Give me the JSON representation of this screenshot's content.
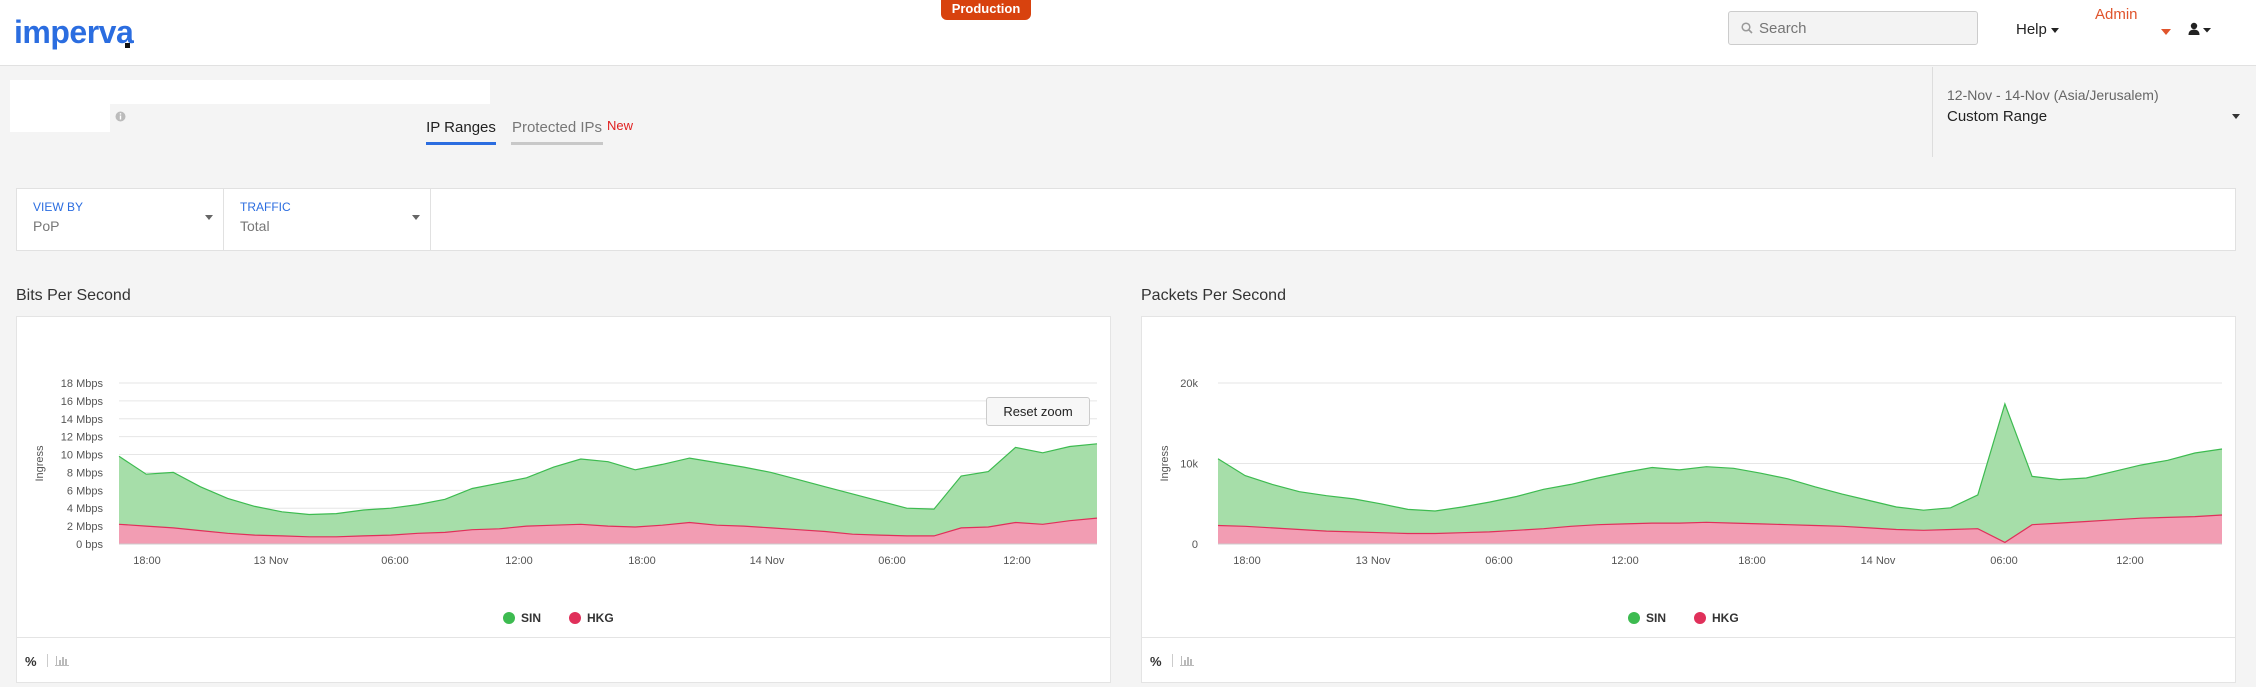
{
  "header": {
    "logo": "imperva",
    "environment": "Production",
    "search_placeholder": "Search",
    "help": "Help",
    "admin": "Admin"
  },
  "tabs": [
    {
      "label": "IP Ranges",
      "active": true
    },
    {
      "label": "Protected IPs",
      "badge": "New",
      "active": false
    }
  ],
  "date_range": {
    "range": "12-Nov - 14-Nov (Asia/Jerusalem)",
    "selection": "Custom Range"
  },
  "filters": [
    {
      "label": "VIEW BY",
      "value": "PoP"
    },
    {
      "label": "TRAFFIC",
      "value": "Total"
    }
  ],
  "colors": {
    "accent": "#2b6de0",
    "sin": "#3dbb50",
    "hkg": "#e0305a",
    "production": "#d8420e"
  },
  "footer_icons": [
    "percent-icon",
    "bar-chart-icon"
  ],
  "reset_zoom": "Reset zoom",
  "chart_data": [
    {
      "type": "area",
      "title": "Bits Per Second",
      "ylabel": "Ingress",
      "y_ticks": [
        "0 bps",
        "2 Mbps",
        "4 Mbps",
        "6 Mbps",
        "8 Mbps",
        "10 Mbps",
        "12 Mbps",
        "14 Mbps",
        "16 Mbps",
        "18 Mbps"
      ],
      "ylim": [
        0,
        18
      ],
      "x_ticks": [
        "18:00",
        "13 Nov",
        "06:00",
        "12:00",
        "18:00",
        "14 Nov",
        "06:00",
        "12:00"
      ],
      "grid": true,
      "legend": "bottom-center",
      "series": [
        {
          "name": "SIN",
          "values": [
            9.8,
            7.8,
            8.0,
            6.4,
            5.1,
            4.2,
            3.6,
            3.3,
            3.4,
            3.8,
            4.0,
            4.4,
            5.0,
            6.2,
            6.8,
            7.4,
            8.6,
            9.5,
            9.2,
            8.3,
            8.9,
            9.6,
            9.1,
            8.6,
            8.0,
            7.2,
            6.4,
            5.6,
            4.8,
            4.0,
            3.9,
            7.6,
            8.1,
            10.8,
            10.2,
            10.9,
            11.2
          ]
        },
        {
          "name": "HKG",
          "values": [
            2.2,
            2.0,
            1.8,
            1.5,
            1.2,
            1.0,
            0.9,
            0.8,
            0.8,
            0.9,
            1.0,
            1.2,
            1.3,
            1.6,
            1.7,
            2.0,
            2.1,
            2.2,
            2.0,
            1.9,
            2.1,
            2.4,
            2.1,
            2.0,
            1.8,
            1.6,
            1.4,
            1.1,
            1.0,
            0.9,
            0.9,
            1.8,
            1.9,
            2.4,
            2.2,
            2.6,
            2.9
          ]
        }
      ]
    },
    {
      "type": "area",
      "title": "Packets Per Second",
      "ylabel": "Ingress",
      "y_ticks": [
        "0",
        "10k",
        "20k"
      ],
      "ylim": [
        0,
        20
      ],
      "x_ticks": [
        "18:00",
        "13 Nov",
        "06:00",
        "12:00",
        "18:00",
        "14 Nov",
        "06:00",
        "12:00"
      ],
      "grid": true,
      "legend": "bottom-center",
      "series": [
        {
          "name": "SIN",
          "values": [
            10.6,
            8.5,
            7.4,
            6.5,
            6.0,
            5.6,
            5.0,
            4.3,
            4.1,
            4.6,
            5.2,
            5.9,
            6.8,
            7.4,
            8.2,
            8.9,
            9.5,
            9.2,
            9.6,
            9.4,
            8.8,
            8.1,
            7.1,
            6.2,
            5.4,
            4.6,
            4.2,
            4.5,
            6.1,
            17.4,
            8.4,
            8.0,
            8.2,
            9.0,
            9.8,
            10.4,
            11.3,
            11.8
          ]
        },
        {
          "name": "HKG",
          "values": [
            2.3,
            2.2,
            2.0,
            1.8,
            1.6,
            1.5,
            1.4,
            1.3,
            1.3,
            1.4,
            1.5,
            1.7,
            1.9,
            2.2,
            2.4,
            2.5,
            2.6,
            2.6,
            2.7,
            2.6,
            2.5,
            2.4,
            2.3,
            2.2,
            2.0,
            1.8,
            1.7,
            1.8,
            1.9,
            0.2,
            2.4,
            2.6,
            2.8,
            3.0,
            3.2,
            3.3,
            3.4,
            3.6
          ]
        }
      ]
    }
  ]
}
